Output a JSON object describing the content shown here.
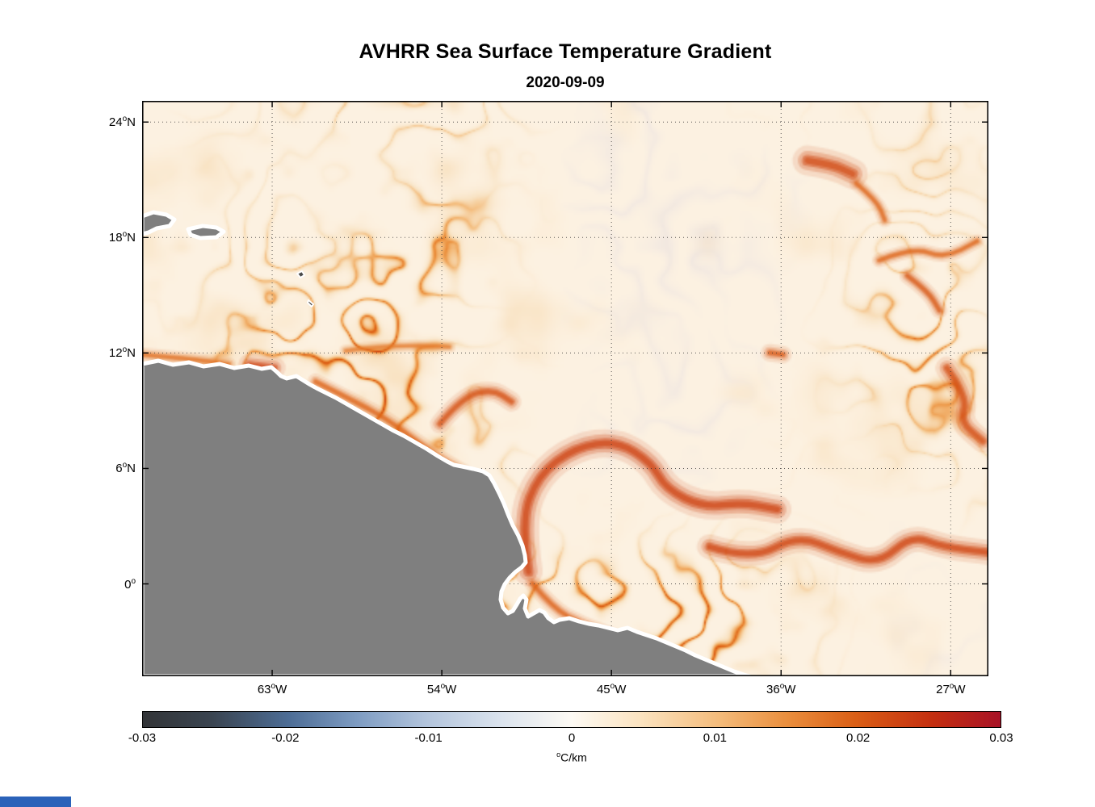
{
  "title": "AVHRR Sea Surface Temperature Gradient",
  "subtitle": "2020-09-09",
  "artifact_strip_color": "#2a62b9",
  "chart_data": {
    "type": "heatmap",
    "title": "AVHRR Sea Surface Temperature Gradient",
    "date": "2020-09-09",
    "description": "Map of sea surface temperature gradient magnitude over the tropical western Atlantic; orange-red filaments mark strong SST fronts, gray landmass is northeastern South America with Caribbean islands; grid dotted, box on.",
    "degree_glyph": "o",
    "grid": true,
    "land_color": "#7f7f7f",
    "coast_halo_color": "#ffffff",
    "ocean_base_color": "#fdf2e2",
    "lavender_color": "#d8d2de",
    "x_axis": {
      "range": [
        -69.9,
        -25.0
      ],
      "ticks": [
        {
          "value": -63,
          "num": "63",
          "suffix": "W"
        },
        {
          "value": -54,
          "num": "54",
          "suffix": "W"
        },
        {
          "value": -45,
          "num": "45",
          "suffix": "W"
        },
        {
          "value": -36,
          "num": "36",
          "suffix": "W"
        },
        {
          "value": -27,
          "num": "27",
          "suffix": "W"
        }
      ]
    },
    "y_axis": {
      "range": [
        -4.8,
        25.1
      ],
      "ticks": [
        {
          "value": 24,
          "num": "24",
          "suffix": "N"
        },
        {
          "value": 18,
          "num": "18",
          "suffix": "N"
        },
        {
          "value": 12,
          "num": "12",
          "suffix": "N"
        },
        {
          "value": 6,
          "num": "6",
          "suffix": "N"
        },
        {
          "value": 0,
          "num": "0",
          "suffix": ""
        }
      ]
    },
    "colorbar": {
      "range": [
        -0.03,
        0.03
      ],
      "unit_sup": "o",
      "unit_text": "C/km",
      "ticks": [
        {
          "value": -0.03,
          "label": "-0.03"
        },
        {
          "value": -0.02,
          "label": "-0.02"
        },
        {
          "value": -0.01,
          "label": "-0.01"
        },
        {
          "value": 0,
          "label": "0"
        },
        {
          "value": 0.01,
          "label": "0.01"
        },
        {
          "value": 0.02,
          "label": "0.02"
        },
        {
          "value": 0.03,
          "label": "0.03"
        }
      ],
      "stops": [
        {
          "t": 0.0,
          "c": "#333538"
        },
        {
          "t": 0.08,
          "c": "#3a4450"
        },
        {
          "t": 0.17,
          "c": "#4d6d96"
        },
        {
          "t": 0.25,
          "c": "#7e9cc2"
        },
        {
          "t": 0.33,
          "c": "#b2c4dc"
        },
        {
          "t": 0.42,
          "c": "#dce4ee"
        },
        {
          "t": 0.5,
          "c": "#fdfaf4"
        },
        {
          "t": 0.58,
          "c": "#fbe3c0"
        },
        {
          "t": 0.67,
          "c": "#f4bc7c"
        },
        {
          "t": 0.75,
          "c": "#ea8f3e"
        },
        {
          "t": 0.83,
          "c": "#da5f16"
        },
        {
          "t": 0.92,
          "c": "#c42f10"
        },
        {
          "t": 1.0,
          "c": "#a81226"
        }
      ]
    },
    "field_ramp": [
      {
        "t": 0.0,
        "c": "#fdf2e2"
      },
      {
        "t": 0.18,
        "c": "#f9e3c3"
      },
      {
        "t": 0.38,
        "c": "#f4bd7e"
      },
      {
        "t": 0.58,
        "c": "#ec923f"
      },
      {
        "t": 0.78,
        "c": "#dd6014"
      },
      {
        "t": 1.0,
        "c": "#cc3a08"
      }
    ],
    "fronts": [
      {
        "name": "coastal-spot-west",
        "intensity": 1.0,
        "width": 13,
        "path": [
          [
            -64.2,
            11.35
          ],
          [
            -62.9,
            11.2
          ]
        ]
      },
      {
        "name": "band-12n-west",
        "intensity": 0.45,
        "width": 8,
        "path": [
          [
            -69.9,
            11.9
          ],
          [
            -67.5,
            11.7
          ],
          [
            -65.3,
            11.4
          ]
        ]
      },
      {
        "name": "guiana-coastal-front",
        "intensity": 0.55,
        "width": 9,
        "path": [
          [
            -60.7,
            10.5
          ],
          [
            -58.5,
            9.4
          ],
          [
            -57.0,
            8.6
          ],
          [
            -55.2,
            7.3
          ],
          [
            -54.1,
            6.5
          ],
          [
            -52.3,
            5.5
          ]
        ]
      },
      {
        "name": "demerara-hook",
        "intensity": 0.8,
        "width": 11,
        "path": [
          [
            -54.1,
            8.3
          ],
          [
            -52.9,
            9.7
          ],
          [
            -51.3,
            10.1
          ],
          [
            -50.3,
            9.45
          ]
        ]
      },
      {
        "name": "nbc-retroflection",
        "intensity": 1.0,
        "width": 16,
        "path": [
          [
            -49.4,
            0.6
          ],
          [
            -49.8,
            3.2
          ],
          [
            -48.9,
            5.6
          ],
          [
            -46.9,
            7.1
          ],
          [
            -44.7,
            7.4
          ],
          [
            -42.9,
            6.3
          ],
          [
            -42.1,
            4.9
          ],
          [
            -40.1,
            3.95
          ],
          [
            -38.1,
            4.2
          ],
          [
            -36.2,
            3.85
          ]
        ]
      },
      {
        "name": "necc-wavy-front",
        "intensity": 0.95,
        "width": 14,
        "path": [
          [
            -39.8,
            1.9
          ],
          [
            -37.6,
            1.2
          ],
          [
            -35.1,
            2.5
          ],
          [
            -32.9,
            1.6
          ],
          [
            -30.8,
            1.0
          ],
          [
            -29.1,
            2.5
          ],
          [
            -27.4,
            1.9
          ],
          [
            -25.0,
            1.6
          ]
        ]
      },
      {
        "name": "amazon-coast-strand",
        "intensity": 0.6,
        "width": 9,
        "path": [
          [
            -49.2,
            0.0
          ],
          [
            -48.1,
            -1.3
          ],
          [
            -46.6,
            -2.1
          ],
          [
            -44.7,
            -2.8
          ],
          [
            -42.6,
            -3.8
          ]
        ]
      },
      {
        "name": "ne-blob",
        "intensity": 0.9,
        "width": 17,
        "path": [
          [
            -34.6,
            22.0
          ],
          [
            -33.3,
            21.8
          ],
          [
            -32.2,
            21.3
          ]
        ]
      },
      {
        "name": "ne-arc",
        "intensity": 0.55,
        "width": 8,
        "path": [
          [
            -32.0,
            20.8
          ],
          [
            -30.9,
            19.9
          ],
          [
            -30.5,
            18.9
          ]
        ]
      },
      {
        "name": "east-edge-front",
        "intensity": 0.85,
        "width": 13,
        "path": [
          [
            -27.2,
            11.2
          ],
          [
            -26.1,
            9.7
          ],
          [
            -26.5,
            8.4
          ],
          [
            -25.3,
            7.4
          ]
        ]
      },
      {
        "name": "ne-wavy-band",
        "intensity": 0.55,
        "width": 8,
        "path": [
          [
            -30.8,
            16.8
          ],
          [
            -29.0,
            17.5
          ],
          [
            -27.3,
            16.9
          ],
          [
            -25.6,
            17.8
          ]
        ]
      },
      {
        "name": "mid-12n-band",
        "intensity": 0.35,
        "width": 7,
        "path": [
          [
            -59.1,
            12.1
          ],
          [
            -56.8,
            12.4
          ],
          [
            -53.6,
            12.3
          ]
        ]
      },
      {
        "name": "east-12n-spot",
        "intensity": 0.7,
        "width": 10,
        "path": [
          [
            -36.6,
            12.0
          ],
          [
            -35.9,
            11.9
          ]
        ]
      },
      {
        "name": "east-17n-swirl",
        "intensity": 0.7,
        "width": 9,
        "path": [
          [
            -29.3,
            16.0
          ],
          [
            -28.2,
            15.2
          ],
          [
            -27.6,
            14.2
          ]
        ]
      }
    ]
  }
}
